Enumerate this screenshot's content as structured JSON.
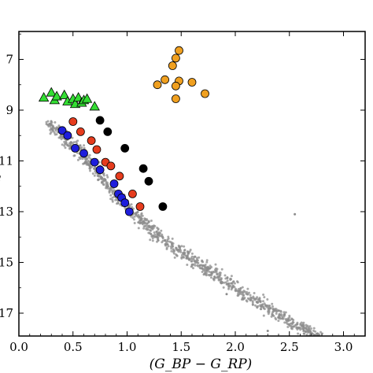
{
  "chart_data": {
    "type": "scatter",
    "title": "",
    "xlabel": "(G_BP − G_RP)",
    "ylabel": "G",
    "xlim": [
      0.0,
      3.2
    ],
    "ylim": [
      17.9,
      5.9
    ],
    "y_inverted": true,
    "grid": false,
    "x_ticks": [
      0.0,
      0.5,
      1.0,
      1.5,
      2.0,
      2.5,
      3.0
    ],
    "x_tick_labels": [
      "0.0",
      "0.5",
      "1.0",
      "1.5",
      "2.0",
      "2.5",
      "3.0"
    ],
    "y_ticks": [
      7,
      9,
      11,
      13,
      15,
      17
    ],
    "y_tick_labels": [
      "7",
      "9",
      "11",
      "13",
      "15",
      "17"
    ],
    "background_sequence": {
      "color": "#8c8c8c",
      "ridge": [
        [
          0.26,
          9.5
        ],
        [
          0.4,
          10.0
        ],
        [
          0.55,
          10.6
        ],
        [
          0.7,
          11.3
        ],
        [
          0.85,
          12.1
        ],
        [
          1.0,
          12.8
        ],
        [
          1.15,
          13.4
        ],
        [
          1.3,
          14.0
        ],
        [
          1.5,
          14.6
        ],
        [
          1.7,
          15.2
        ],
        [
          1.9,
          15.7
        ],
        [
          2.1,
          16.3
        ],
        [
          2.3,
          16.8
        ],
        [
          2.5,
          17.3
        ],
        [
          2.7,
          17.8
        ],
        [
          2.95,
          18.3
        ]
      ],
      "scatter_width_mag": 0.35,
      "count": 1100
    },
    "series": [
      {
        "color": "#33dd33",
        "marker": "triangle",
        "points": [
          [
            0.23,
            8.5
          ],
          [
            0.3,
            8.3
          ],
          [
            0.33,
            8.6
          ],
          [
            0.35,
            8.45
          ],
          [
            0.42,
            8.4
          ],
          [
            0.45,
            8.65
          ],
          [
            0.5,
            8.55
          ],
          [
            0.52,
            8.75
          ],
          [
            0.55,
            8.5
          ],
          [
            0.58,
            8.7
          ],
          [
            0.6,
            8.6
          ],
          [
            0.63,
            8.55
          ],
          [
            0.7,
            8.85
          ]
        ]
      },
      {
        "color": "#e63c1e",
        "marker": "circle",
        "points": [
          [
            0.5,
            9.45
          ],
          [
            0.57,
            9.85
          ],
          [
            0.67,
            10.2
          ],
          [
            0.72,
            10.55
          ],
          [
            0.8,
            11.05
          ],
          [
            0.85,
            11.2
          ],
          [
            0.93,
            11.6
          ],
          [
            1.05,
            12.3
          ],
          [
            1.12,
            12.8
          ]
        ]
      },
      {
        "color": "#1e1edc",
        "marker": "circle",
        "points": [
          [
            0.4,
            9.8
          ],
          [
            0.45,
            10.0
          ],
          [
            0.52,
            10.5
          ],
          [
            0.6,
            10.7
          ],
          [
            0.7,
            11.05
          ],
          [
            0.75,
            11.35
          ],
          [
            0.88,
            11.9
          ],
          [
            0.92,
            12.3
          ],
          [
            0.95,
            12.45
          ],
          [
            0.98,
            12.65
          ],
          [
            1.02,
            13.0
          ]
        ]
      },
      {
        "color": "#000000",
        "marker": "circle",
        "points": [
          [
            0.75,
            9.4
          ],
          [
            0.82,
            9.85
          ],
          [
            0.98,
            10.5
          ],
          [
            1.15,
            11.3
          ],
          [
            1.2,
            11.8
          ],
          [
            1.33,
            12.8
          ]
        ]
      },
      {
        "color": "#f0a020",
        "marker": "circle",
        "points": [
          [
            1.48,
            6.65
          ],
          [
            1.45,
            6.95
          ],
          [
            1.42,
            7.25
          ],
          [
            1.35,
            7.8
          ],
          [
            1.48,
            7.85
          ],
          [
            1.6,
            7.9
          ],
          [
            1.28,
            8.0
          ],
          [
            1.45,
            8.05
          ],
          [
            1.72,
            8.35
          ],
          [
            1.45,
            8.55
          ]
        ]
      }
    ]
  }
}
